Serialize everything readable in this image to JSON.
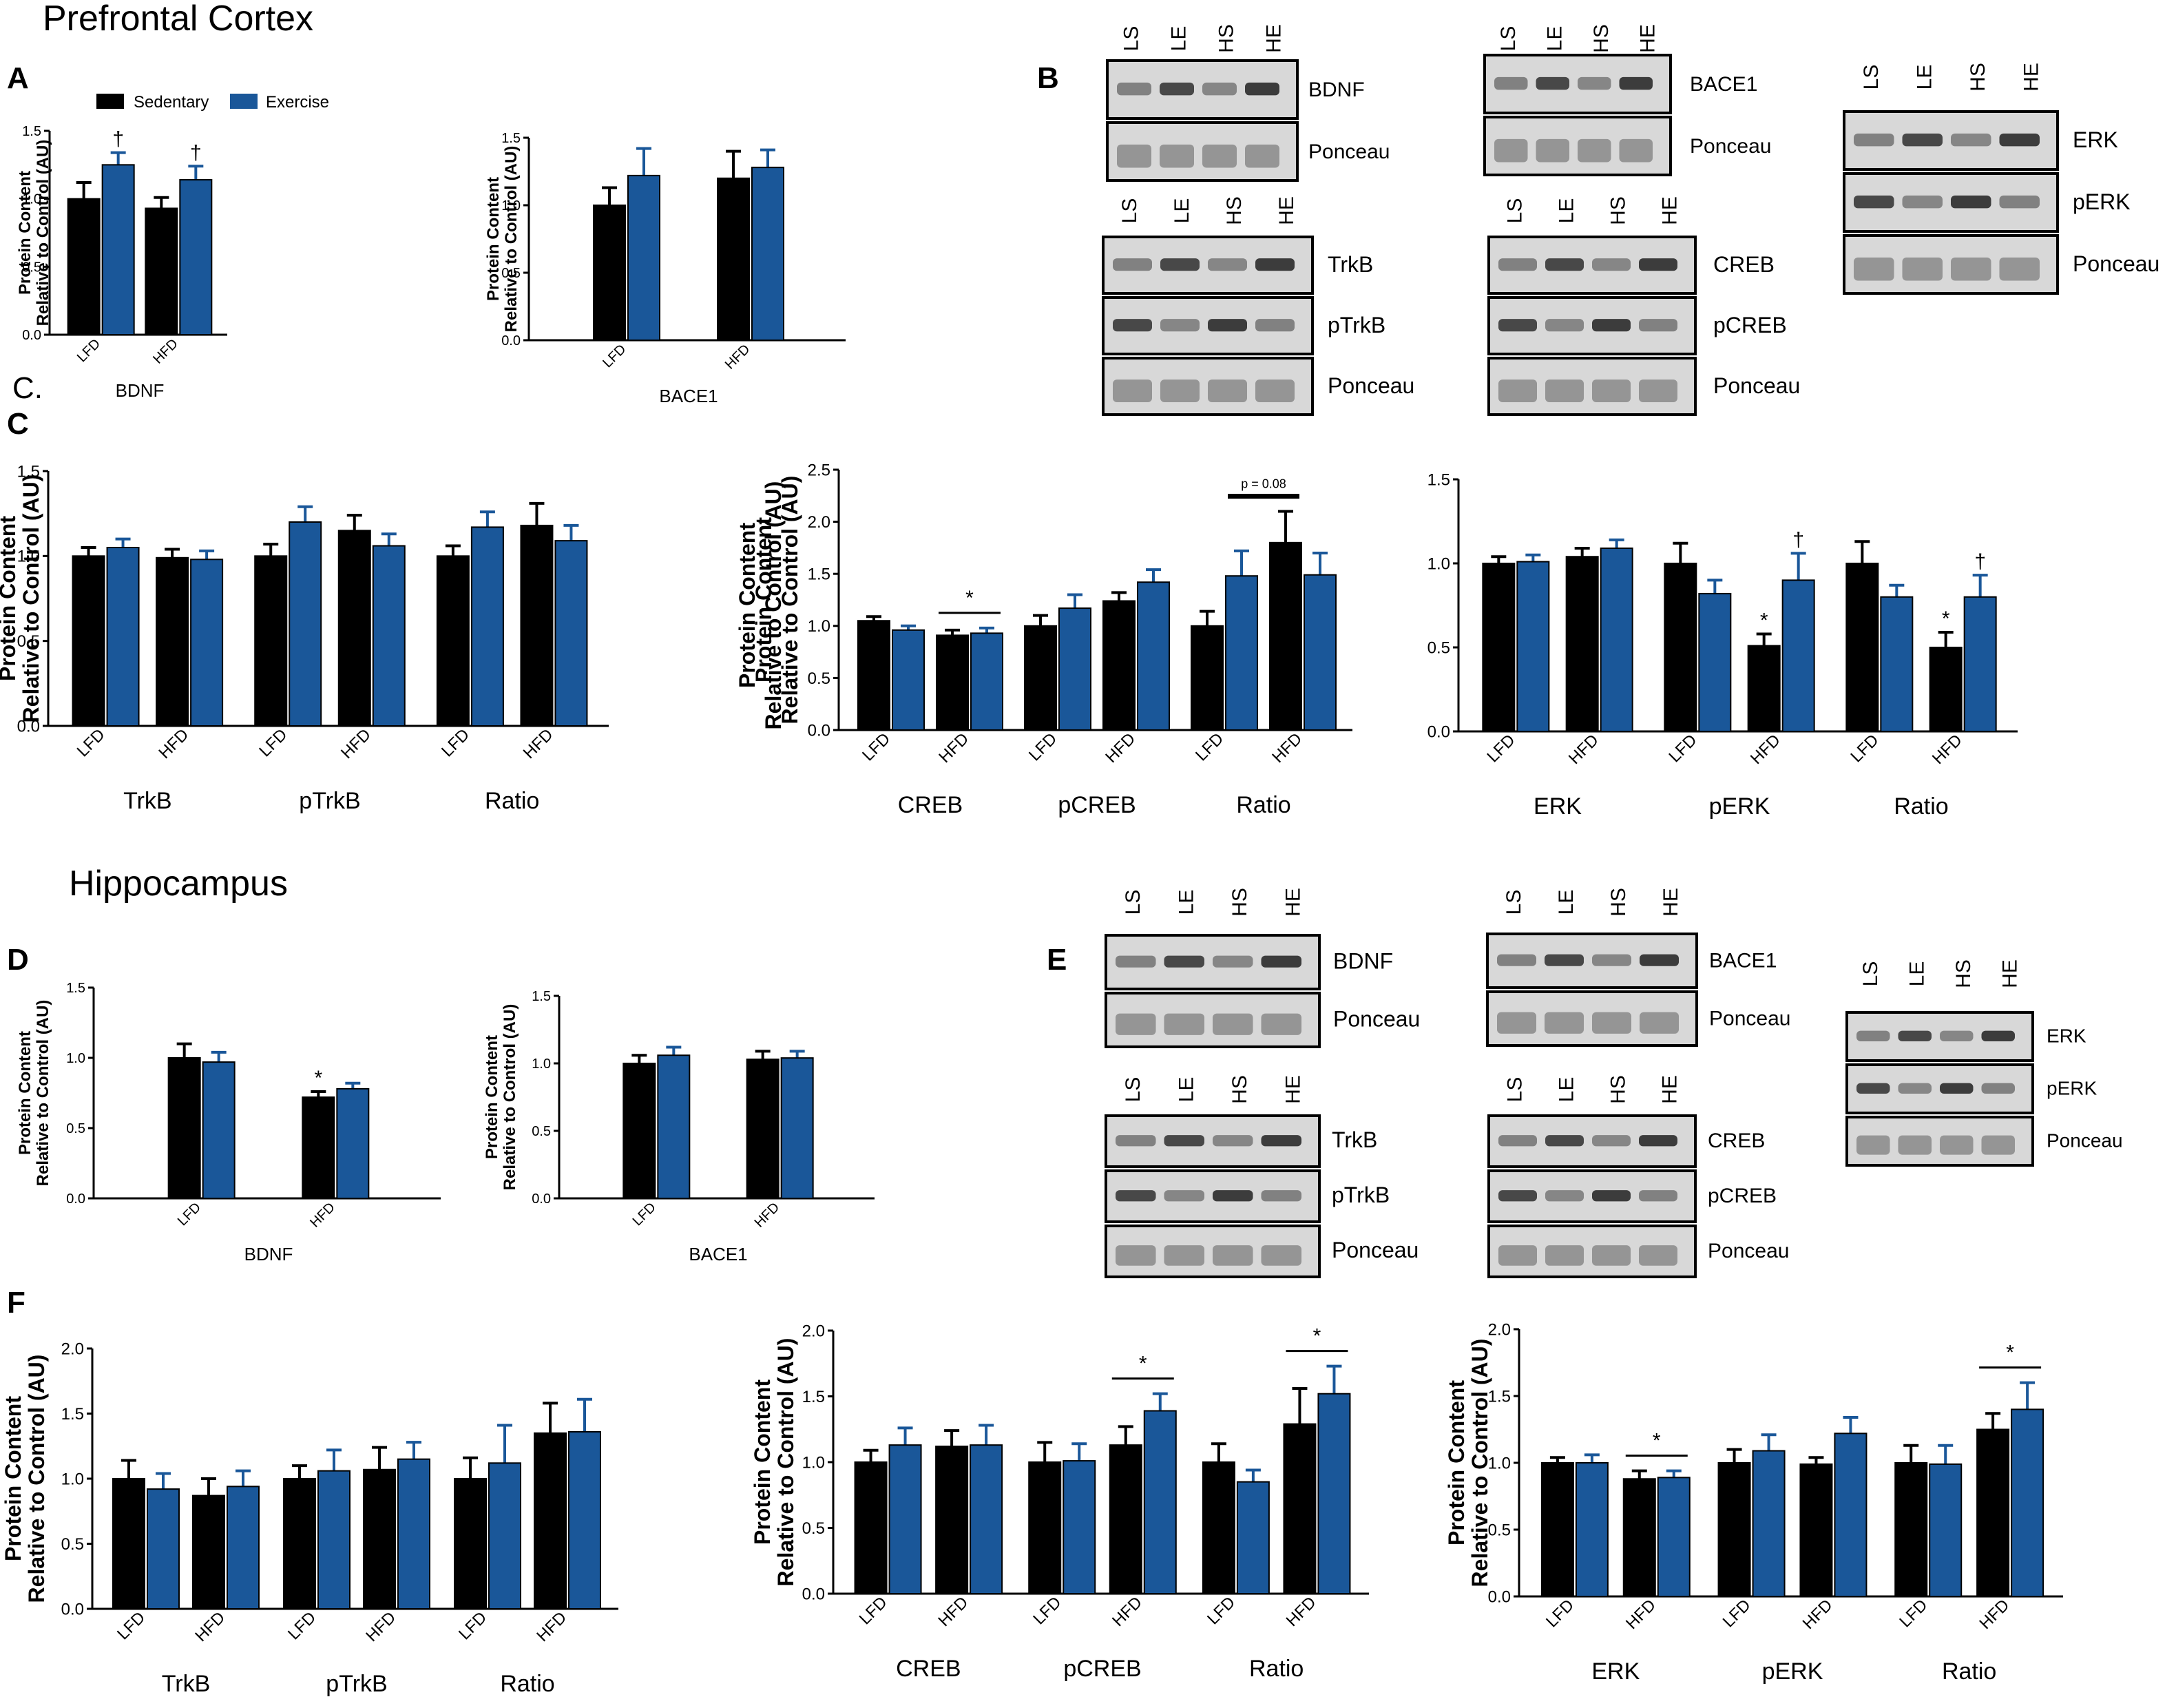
{
  "titles": {
    "pfc": "Prefrontal Cortex",
    "hippo": "Hippocampus"
  },
  "panels": {
    "A": "A",
    "B": "B",
    "Cstray": "C.",
    "C": "C",
    "D": "D",
    "E": "E",
    "F": "F"
  },
  "colors": {
    "sedentary": "#000000",
    "exercise": "#1a5799"
  },
  "legend": {
    "sedentary": "Sedentary",
    "exercise": "Exercise"
  },
  "lanes": [
    "LS",
    "LE",
    "HS",
    "HE"
  ],
  "blots": {
    "B": {
      "bdnf": [
        "BDNF",
        "Ponceau"
      ],
      "bace": [
        "BACE1",
        "Ponceau"
      ],
      "trkb": [
        "TrkB",
        "pTrkB",
        "Ponceau"
      ],
      "creb": [
        "CREB",
        "pCREB",
        "Ponceau"
      ],
      "erk": [
        "ERK",
        "pERK",
        "Ponceau"
      ]
    },
    "E": {
      "bdnf": [
        "BDNF",
        "Ponceau"
      ],
      "bace": [
        "BACE1",
        "Ponceau"
      ],
      "trkb": [
        "TrkB",
        "pTrkB",
        "Ponceau"
      ],
      "creb": [
        "CREB",
        "pCREB",
        "Ponceau"
      ],
      "erk": [
        "ERK",
        "pERK",
        "Ponceau"
      ]
    }
  },
  "chart_data": [
    {
      "id": "A1",
      "type": "bar",
      "ylabel": [
        "Protein Content",
        "Relative to Control (AU)"
      ],
      "ylim": [
        0,
        1.5
      ],
      "yticks": [
        "0.0",
        "0.5",
        "1.0",
        "1.5"
      ],
      "groups": [
        {
          "label": "BDNF",
          "categories": [
            "LFD",
            "HFD"
          ]
        }
      ],
      "series": [
        {
          "name": "Sedentary",
          "values": [
            1.0,
            0.93
          ],
          "err": [
            0.12,
            0.08
          ]
        },
        {
          "name": "Exercise",
          "values": [
            1.25,
            1.14
          ],
          "err": [
            0.09,
            0.1
          ]
        }
      ],
      "annotations": [
        {
          "text": "†",
          "series": 1,
          "index": 0
        },
        {
          "text": "†",
          "series": 1,
          "index": 1
        }
      ]
    },
    {
      "id": "A2",
      "type": "bar",
      "ylabel": [
        "Protein Content",
        "Relative to Control (AU)"
      ],
      "ylim": [
        0,
        1.5
      ],
      "yticks": [
        "0.0",
        "0.5",
        "1.0",
        "1.5"
      ],
      "groups": [
        {
          "label": "BACE1",
          "categories": [
            "LFD",
            "HFD"
          ]
        }
      ],
      "series": [
        {
          "name": "Sedentary",
          "values": [
            1.0,
            1.2
          ],
          "err": [
            0.13,
            0.2
          ]
        },
        {
          "name": "Exercise",
          "values": [
            1.22,
            1.28
          ],
          "err": [
            0.2,
            0.13
          ]
        }
      ],
      "annotations": []
    },
    {
      "id": "C1",
      "type": "bar",
      "ylabel": [
        "Protein Content",
        "Relative to Control (AU)"
      ],
      "ylim": [
        0,
        1.5
      ],
      "yticks": [
        "0.0",
        "0.5",
        "1.0",
        "1.5"
      ],
      "groups": [
        {
          "label": "TrkB",
          "categories": [
            "LFD",
            "HFD"
          ]
        },
        {
          "label": "pTrkB",
          "categories": [
            "LFD",
            "HFD"
          ]
        },
        {
          "label": "Ratio",
          "categories": [
            "LFD",
            "HFD"
          ]
        }
      ],
      "series": [
        {
          "name": "Sedentary",
          "values": [
            1.0,
            0.99,
            1.0,
            1.15,
            1.0,
            1.18
          ],
          "err": [
            0.05,
            0.05,
            0.07,
            0.09,
            0.06,
            0.13
          ]
        },
        {
          "name": "Exercise",
          "values": [
            1.05,
            0.98,
            1.2,
            1.06,
            1.17,
            1.09
          ],
          "err": [
            0.05,
            0.05,
            0.09,
            0.07,
            0.09,
            0.09
          ]
        }
      ],
      "annotations": []
    },
    {
      "id": "C2",
      "type": "bar",
      "ylabel": [
        "Protein Content",
        "Relative to Control (AU)"
      ],
      "ylim": [
        0,
        2.5
      ],
      "yticks": [
        "0.0",
        "0.5",
        "1.0",
        "1.5",
        "2.0",
        "2.5"
      ],
      "groups": [
        {
          "label": "CREB",
          "categories": [
            "LFD",
            "HFD"
          ]
        },
        {
          "label": "pCREB",
          "categories": [
            "LFD",
            "HFD"
          ]
        },
        {
          "label": "Ratio",
          "categories": [
            "LFD",
            "HFD"
          ]
        }
      ],
      "series": [
        {
          "name": "Sedentary",
          "values": [
            1.05,
            0.91,
            1.0,
            1.24,
            1.0,
            1.8
          ],
          "err": [
            0.04,
            0.05,
            0.1,
            0.08,
            0.14,
            0.3
          ]
        },
        {
          "name": "Exercise",
          "values": [
            0.96,
            0.93,
            1.17,
            1.42,
            1.48,
            1.49
          ],
          "err": [
            0.04,
            0.05,
            0.13,
            0.12,
            0.24,
            0.21
          ]
        }
      ],
      "annotations": [
        {
          "text": "*",
          "bracket": [
            2,
            3
          ]
        },
        {
          "text": "p = 0.08",
          "bracket": [
            9,
            10
          ]
        }
      ]
    },
    {
      "id": "C3",
      "type": "bar",
      "ylabel": [
        "Protein Content",
        "Relative to Control (AU)"
      ],
      "ylim": [
        0,
        1.5
      ],
      "yticks": [
        "0.0",
        "0.5",
        "1.0",
        "1.5"
      ],
      "groups": [
        {
          "label": "ERK",
          "categories": [
            "LFD",
            "HFD"
          ]
        },
        {
          "label": "pERK",
          "categories": [
            "LFD",
            "HFD"
          ]
        },
        {
          "label": "Ratio",
          "categories": [
            "LFD",
            "HFD"
          ]
        }
      ],
      "series": [
        {
          "name": "Sedentary",
          "values": [
            1.0,
            1.04,
            1.0,
            0.51,
            1.0,
            0.5
          ],
          "err": [
            0.04,
            0.05,
            0.12,
            0.07,
            0.13,
            0.09
          ]
        },
        {
          "name": "Exercise",
          "values": [
            1.01,
            1.09,
            0.82,
            0.9,
            0.8,
            0.8
          ],
          "err": [
            0.04,
            0.05,
            0.08,
            0.16,
            0.07,
            0.13
          ]
        }
      ],
      "annotations": [
        {
          "text": "*",
          "series": 0,
          "index": 3
        },
        {
          "text": "†",
          "series": 1,
          "index": 3
        },
        {
          "text": "*",
          "series": 0,
          "index": 5
        },
        {
          "text": "†",
          "series": 1,
          "index": 5
        }
      ]
    },
    {
      "id": "D1",
      "type": "bar",
      "ylabel": [
        "Protein Content",
        "Relative to Control (AU)"
      ],
      "ylim": [
        0,
        1.5
      ],
      "yticks": [
        "0.0",
        "0.5",
        "1.0",
        "1.5"
      ],
      "groups": [
        {
          "label": "BDNF",
          "categories": [
            "LFD",
            "HFD"
          ]
        }
      ],
      "series": [
        {
          "name": "Sedentary",
          "values": [
            1.0,
            0.72
          ],
          "err": [
            0.1,
            0.04
          ]
        },
        {
          "name": "Exercise",
          "values": [
            0.97,
            0.78
          ],
          "err": [
            0.07,
            0.04
          ]
        }
      ],
      "annotations": [
        {
          "text": "*",
          "series": 0,
          "index": 1
        }
      ]
    },
    {
      "id": "D2",
      "type": "bar",
      "ylabel": [
        "Protein Content",
        "Relative to Control (AU)"
      ],
      "ylim": [
        0,
        1.5
      ],
      "yticks": [
        "0.0",
        "0.5",
        "1.0",
        "1.5"
      ],
      "groups": [
        {
          "label": "BACE1",
          "categories": [
            "LFD",
            "HFD"
          ]
        }
      ],
      "series": [
        {
          "name": "Sedentary",
          "values": [
            1.0,
            1.03
          ],
          "err": [
            0.06,
            0.06
          ]
        },
        {
          "name": "Exercise",
          "values": [
            1.06,
            1.04
          ],
          "err": [
            0.06,
            0.05
          ]
        }
      ],
      "annotations": []
    },
    {
      "id": "F1",
      "type": "bar",
      "ylabel": [
        "Protein Content",
        "Relative to Control (AU)"
      ],
      "ylim": [
        0,
        2.0
      ],
      "yticks": [
        "0.0",
        "0.5",
        "1.0",
        "1.5",
        "2.0"
      ],
      "groups": [
        {
          "label": "TrkB",
          "categories": [
            "LFD",
            "HFD"
          ]
        },
        {
          "label": "pTrkB",
          "categories": [
            "LFD",
            "HFD"
          ]
        },
        {
          "label": "Ratio",
          "categories": [
            "LFD",
            "HFD"
          ]
        }
      ],
      "series": [
        {
          "name": "Sedentary",
          "values": [
            1.0,
            0.87,
            1.0,
            1.07,
            1.0,
            1.35
          ],
          "err": [
            0.14,
            0.13,
            0.1,
            0.17,
            0.16,
            0.23
          ]
        },
        {
          "name": "Exercise",
          "values": [
            0.92,
            0.94,
            1.06,
            1.15,
            1.12,
            1.36
          ],
          "err": [
            0.12,
            0.12,
            0.16,
            0.13,
            0.29,
            0.25
          ]
        }
      ],
      "annotations": []
    },
    {
      "id": "F2",
      "type": "bar",
      "ylabel": [
        "Protein Content",
        "Relative to Control (AU)"
      ],
      "ylim": [
        0,
        2.0
      ],
      "yticks": [
        "0.0",
        "0.5",
        "1.0",
        "1.5",
        "2.0"
      ],
      "groups": [
        {
          "label": "CREB",
          "categories": [
            "LFD",
            "HFD"
          ]
        },
        {
          "label": "pCREB",
          "categories": [
            "LFD",
            "HFD"
          ]
        },
        {
          "label": "Ratio",
          "categories": [
            "LFD",
            "HFD"
          ]
        }
      ],
      "series": [
        {
          "name": "Sedentary",
          "values": [
            1.0,
            1.12,
            1.0,
            1.13,
            1.0,
            1.29
          ],
          "err": [
            0.09,
            0.12,
            0.15,
            0.14,
            0.14,
            0.27
          ]
        },
        {
          "name": "Exercise",
          "values": [
            1.13,
            1.13,
            1.01,
            1.39,
            0.85,
            1.52
          ],
          "err": [
            0.13,
            0.15,
            0.13,
            0.13,
            0.09,
            0.21
          ]
        }
      ],
      "annotations": [
        {
          "text": "*",
          "bracket": [
            6,
            7
          ]
        },
        {
          "text": "*",
          "bracket": [
            10,
            11
          ]
        }
      ]
    },
    {
      "id": "F3",
      "type": "bar",
      "ylabel": [
        "Protein Content",
        "Relative to Control (AU)"
      ],
      "ylim": [
        0,
        2.0
      ],
      "yticks": [
        "0.0",
        "0.5",
        "1.0",
        "1.5",
        "2.0"
      ],
      "groups": [
        {
          "label": "ERK",
          "categories": [
            "LFD",
            "HFD"
          ]
        },
        {
          "label": "pERK",
          "categories": [
            "LFD",
            "HFD"
          ]
        },
        {
          "label": "Ratio",
          "categories": [
            "LFD",
            "HFD"
          ]
        }
      ],
      "series": [
        {
          "name": "Sedentary",
          "values": [
            1.0,
            0.88,
            1.0,
            0.99,
            1.0,
            1.25
          ],
          "err": [
            0.04,
            0.06,
            0.1,
            0.05,
            0.13,
            0.12
          ]
        },
        {
          "name": "Exercise",
          "values": [
            1.0,
            0.89,
            1.09,
            1.22,
            0.99,
            1.4
          ],
          "err": [
            0.06,
            0.05,
            0.12,
            0.12,
            0.14,
            0.2
          ]
        }
      ],
      "annotations": [
        {
          "text": "*",
          "bracket": [
            2,
            3
          ]
        },
        {
          "text": "*",
          "bracket": [
            10,
            11
          ]
        }
      ]
    }
  ]
}
